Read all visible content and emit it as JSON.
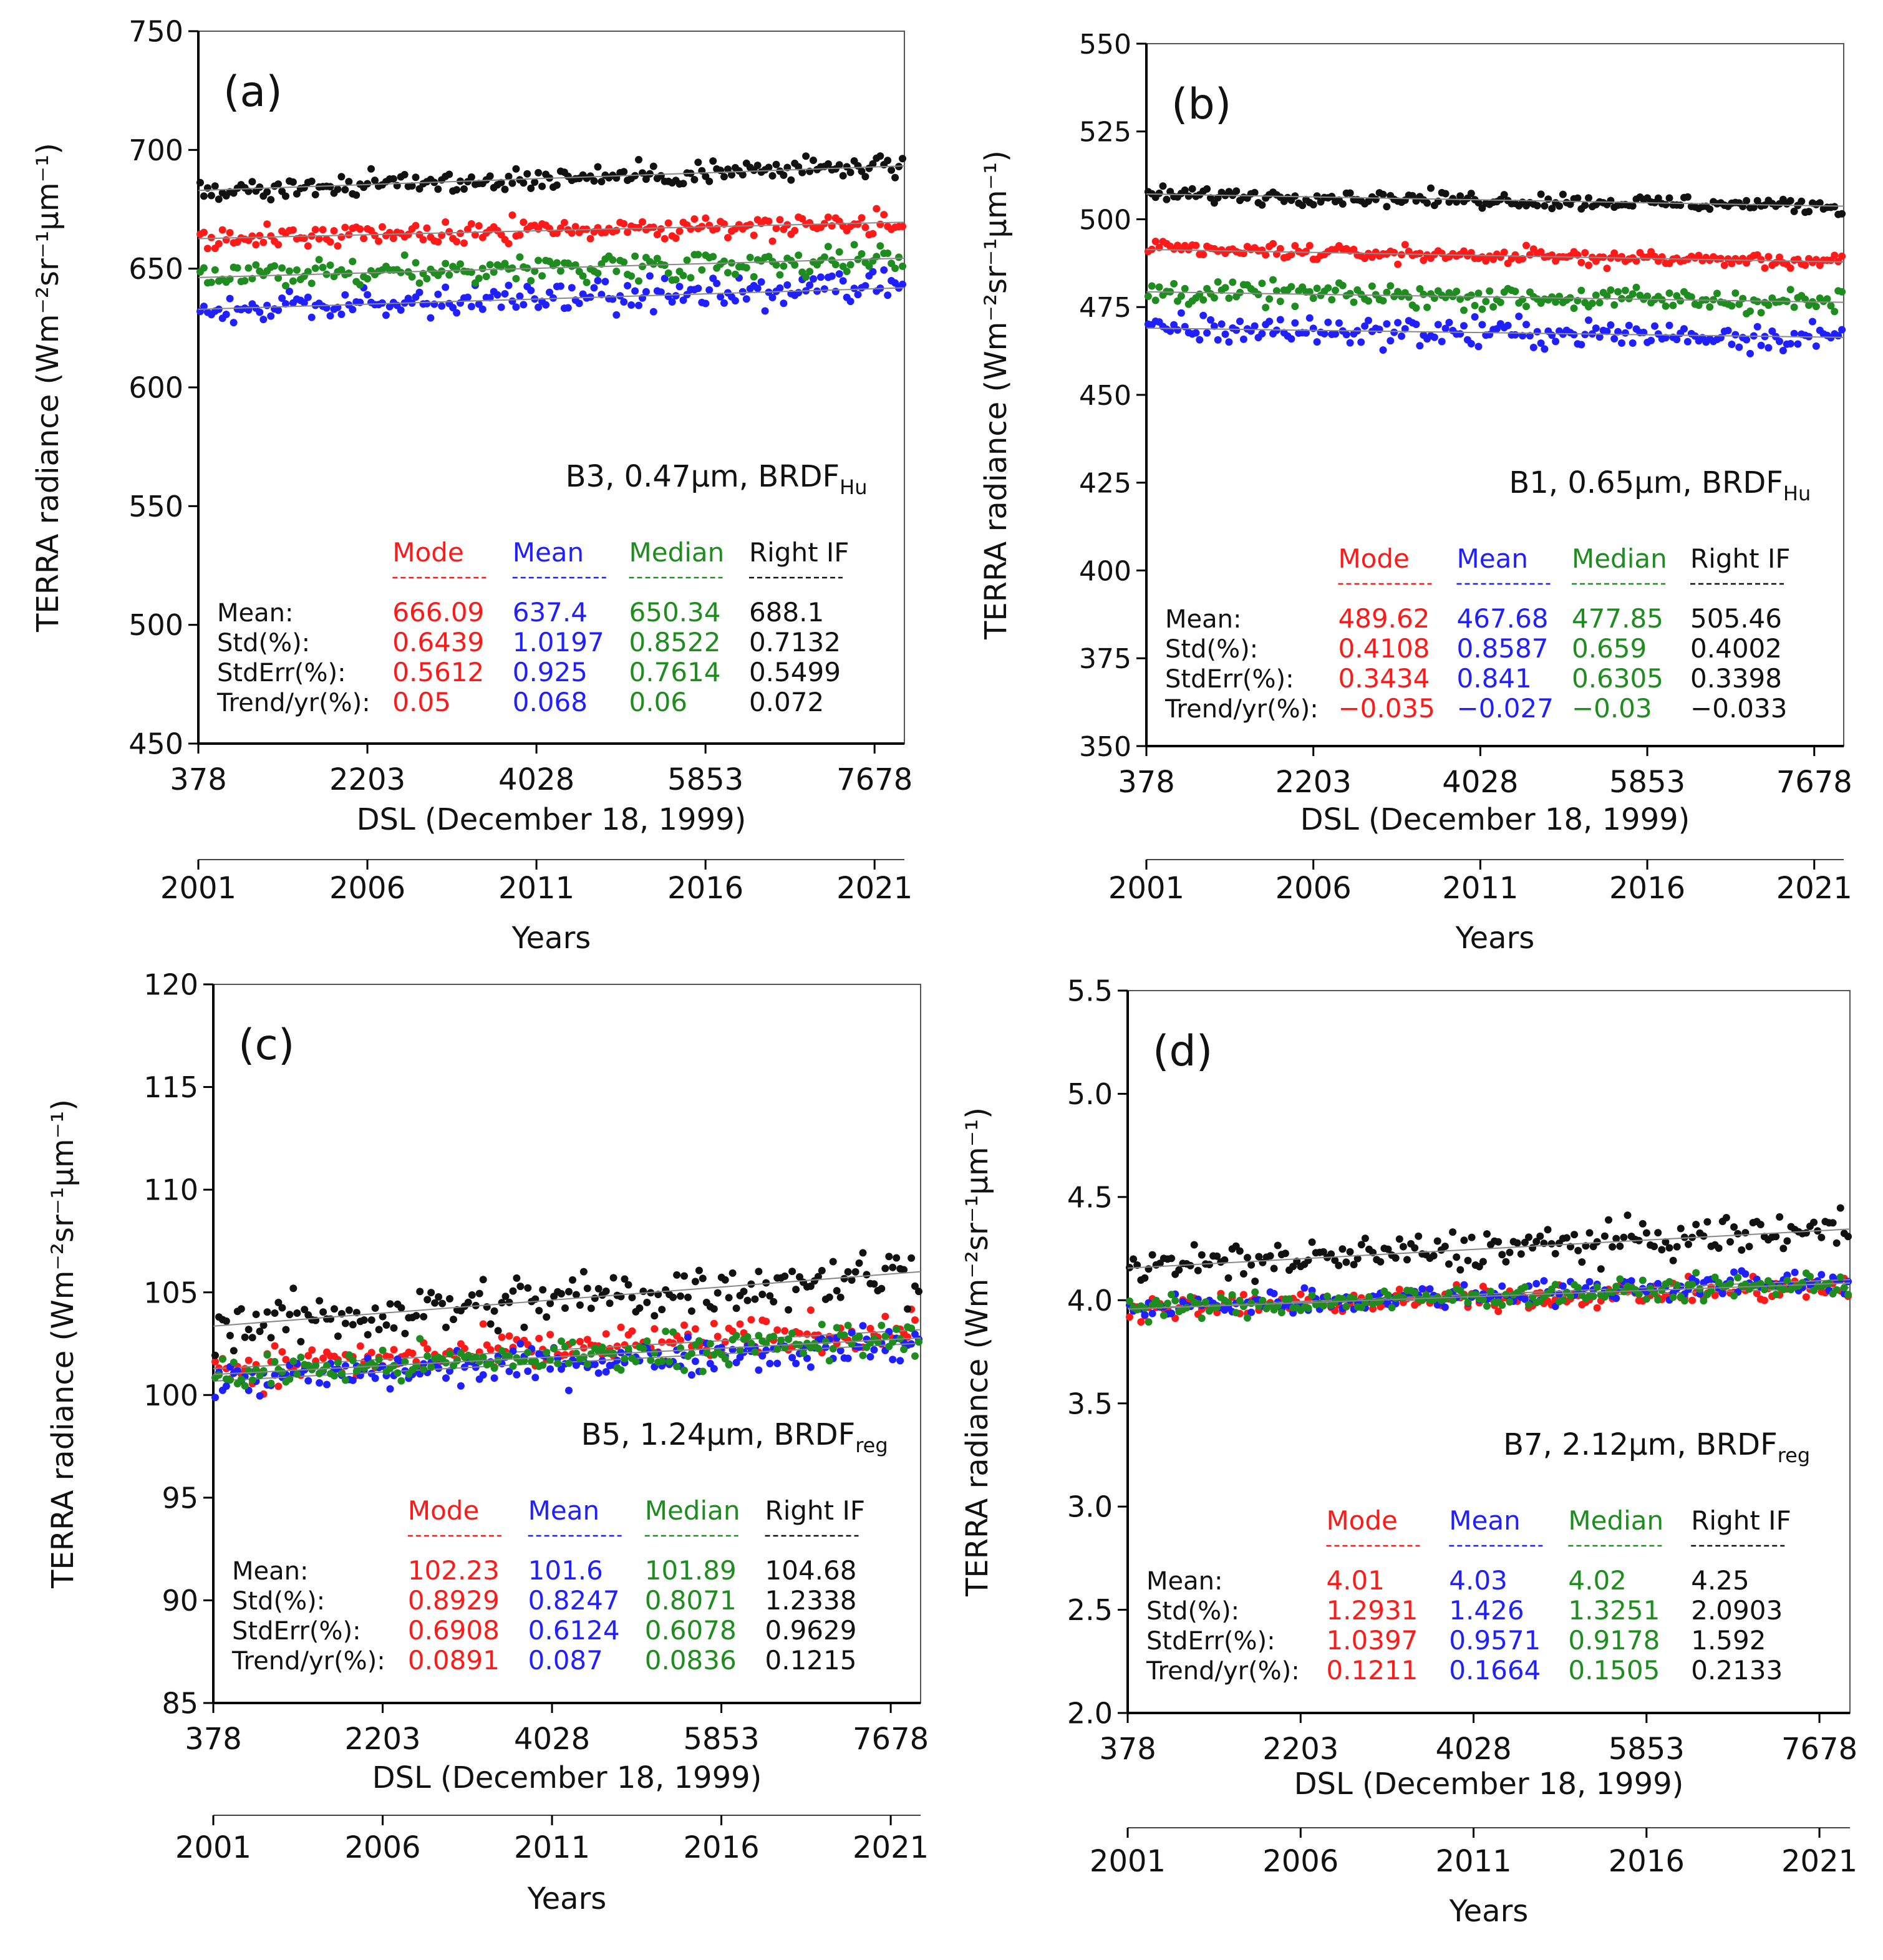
{
  "figure": {
    "colors": {
      "mode": "#ff1a1a",
      "mean": "#1f1fff",
      "median": "#1e8c1e",
      "right_if": "#111111",
      "fit": "#888888",
      "frame": "#555555",
      "text": "#111111"
    },
    "x_tick_labels": [
      "378",
      "2203",
      "4028",
      "5853",
      "7678"
    ],
    "x_label": "DSL (December 18, 1999)",
    "years_tick_labels": [
      "2001",
      "2006",
      "2011",
      "2016",
      "2021"
    ],
    "years_label": "Years",
    "y_label": "TERRA radiance (Wm⁻²sr⁻¹μm⁻¹)",
    "stat_column_headers": [
      "Mode",
      "Mean",
      "Median",
      "Right IF"
    ],
    "stat_row_labels": [
      "Mean:",
      "Std(%):",
      "StdErr(%):",
      "Trend/yr(%):"
    ]
  },
  "chart_data": [
    {
      "panel": "(a)",
      "type": "scatter",
      "band_label": "B3, 0.47μm, BRDF",
      "band_sub": "Hu",
      "xlim": [
        378,
        8000
      ],
      "ylim": [
        450,
        750
      ],
      "y_ticks": [
        "450",
        "500",
        "550",
        "600",
        "650",
        "700",
        "750"
      ],
      "series": [
        {
          "name": "Mode",
          "key": "mode",
          "mean": 666.09,
          "scatter_pct": 0.6439,
          "trend_pct": 0.05
        },
        {
          "name": "Mean",
          "key": "mean",
          "mean": 637.4,
          "scatter_pct": 1.0197,
          "trend_pct": 0.068
        },
        {
          "name": "Median",
          "key": "median",
          "mean": 650.34,
          "scatter_pct": 0.8522,
          "trend_pct": 0.06
        },
        {
          "name": "Right IF",
          "key": "right_if",
          "mean": 688.1,
          "scatter_pct": 0.7132,
          "trend_pct": 0.072
        }
      ],
      "stats": [
        [
          "666.09",
          "637.4",
          "650.34",
          "688.1"
        ],
        [
          "0.6439",
          "1.0197",
          "0.8522",
          "0.7132"
        ],
        [
          "0.5612",
          "0.925",
          "0.7614",
          "0.5499"
        ],
        [
          "0.05",
          "0.068",
          "0.06",
          "0.072"
        ]
      ]
    },
    {
      "panel": "(b)",
      "type": "scatter",
      "band_label": "B1, 0.65μm, BRDF",
      "band_sub": "Hu",
      "xlim": [
        378,
        8000
      ],
      "ylim": [
        350,
        550
      ],
      "y_ticks": [
        "350",
        "375",
        "400",
        "425",
        "450",
        "475",
        "500",
        "525",
        "550"
      ],
      "series": [
        {
          "name": "Mode",
          "key": "mode",
          "mean": 489.62,
          "scatter_pct": 0.4108,
          "trend_pct": -0.035
        },
        {
          "name": "Mean",
          "key": "mean",
          "mean": 467.68,
          "scatter_pct": 0.8587,
          "trend_pct": -0.027
        },
        {
          "name": "Median",
          "key": "median",
          "mean": 477.85,
          "scatter_pct": 0.659,
          "trend_pct": -0.03
        },
        {
          "name": "Right IF",
          "key": "right_if",
          "mean": 505.46,
          "scatter_pct": 0.4002,
          "trend_pct": -0.033
        }
      ],
      "stats": [
        [
          "489.62",
          "467.68",
          "477.85",
          "505.46"
        ],
        [
          "0.4108",
          "0.8587",
          "0.659",
          "0.4002"
        ],
        [
          "0.3434",
          "0.841",
          "0.6305",
          "0.3398"
        ],
        [
          "−0.035",
          "−0.027",
          "−0.03",
          "−0.033"
        ]
      ]
    },
    {
      "panel": "(c)",
      "type": "scatter",
      "band_label": "B5, 1.24μm, BRDF",
      "band_sub": "reg",
      "xlim": [
        378,
        8000
      ],
      "ylim": [
        85,
        120
      ],
      "y_ticks": [
        "85",
        "90",
        "95",
        "100",
        "105",
        "110",
        "115",
        "120"
      ],
      "series": [
        {
          "name": "Mode",
          "key": "mode",
          "mean": 102.23,
          "scatter_pct": 0.8929,
          "trend_pct": 0.0891
        },
        {
          "name": "Mean",
          "key": "mean",
          "mean": 101.6,
          "scatter_pct": 0.8247,
          "trend_pct": 0.087
        },
        {
          "name": "Median",
          "key": "median",
          "mean": 101.89,
          "scatter_pct": 0.8071,
          "trend_pct": 0.0836
        },
        {
          "name": "Right IF",
          "key": "right_if",
          "mean": 104.68,
          "scatter_pct": 1.2338,
          "trend_pct": 0.1215
        }
      ],
      "stats": [
        [
          "102.23",
          "101.6",
          "101.89",
          "104.68"
        ],
        [
          "0.8929",
          "0.8247",
          "0.8071",
          "1.2338"
        ],
        [
          "0.6908",
          "0.6124",
          "0.6078",
          "0.9629"
        ],
        [
          "0.0891",
          "0.087",
          "0.0836",
          "0.1215"
        ]
      ]
    },
    {
      "panel": "(d)",
      "type": "scatter",
      "band_label": "B7, 2.12μm, BRDF",
      "band_sub": "reg",
      "xlim": [
        378,
        8000
      ],
      "ylim": [
        2.0,
        5.5
      ],
      "y_ticks": [
        "2.0",
        "2.5",
        "3.0",
        "3.5",
        "4.0",
        "4.5",
        "5.0",
        "5.5"
      ],
      "series": [
        {
          "name": "Mode",
          "key": "mode",
          "mean": 4.01,
          "scatter_pct": 1.2931,
          "trend_pct": 0.1211
        },
        {
          "name": "Mean",
          "key": "mean",
          "mean": 4.03,
          "scatter_pct": 1.426,
          "trend_pct": 0.1664
        },
        {
          "name": "Median",
          "key": "median",
          "mean": 4.02,
          "scatter_pct": 1.3251,
          "trend_pct": 0.1505
        },
        {
          "name": "Right IF",
          "key": "right_if",
          "mean": 4.25,
          "scatter_pct": 2.0903,
          "trend_pct": 0.2133
        }
      ],
      "stats": [
        [
          "4.01",
          "4.03",
          "4.02",
          "4.25"
        ],
        [
          "1.2931",
          "1.426",
          "1.3251",
          "2.0903"
        ],
        [
          "1.0397",
          "0.9571",
          "0.9178",
          "1.592"
        ],
        [
          "0.1211",
          "0.1664",
          "0.1505",
          "0.2133"
        ]
      ]
    }
  ]
}
